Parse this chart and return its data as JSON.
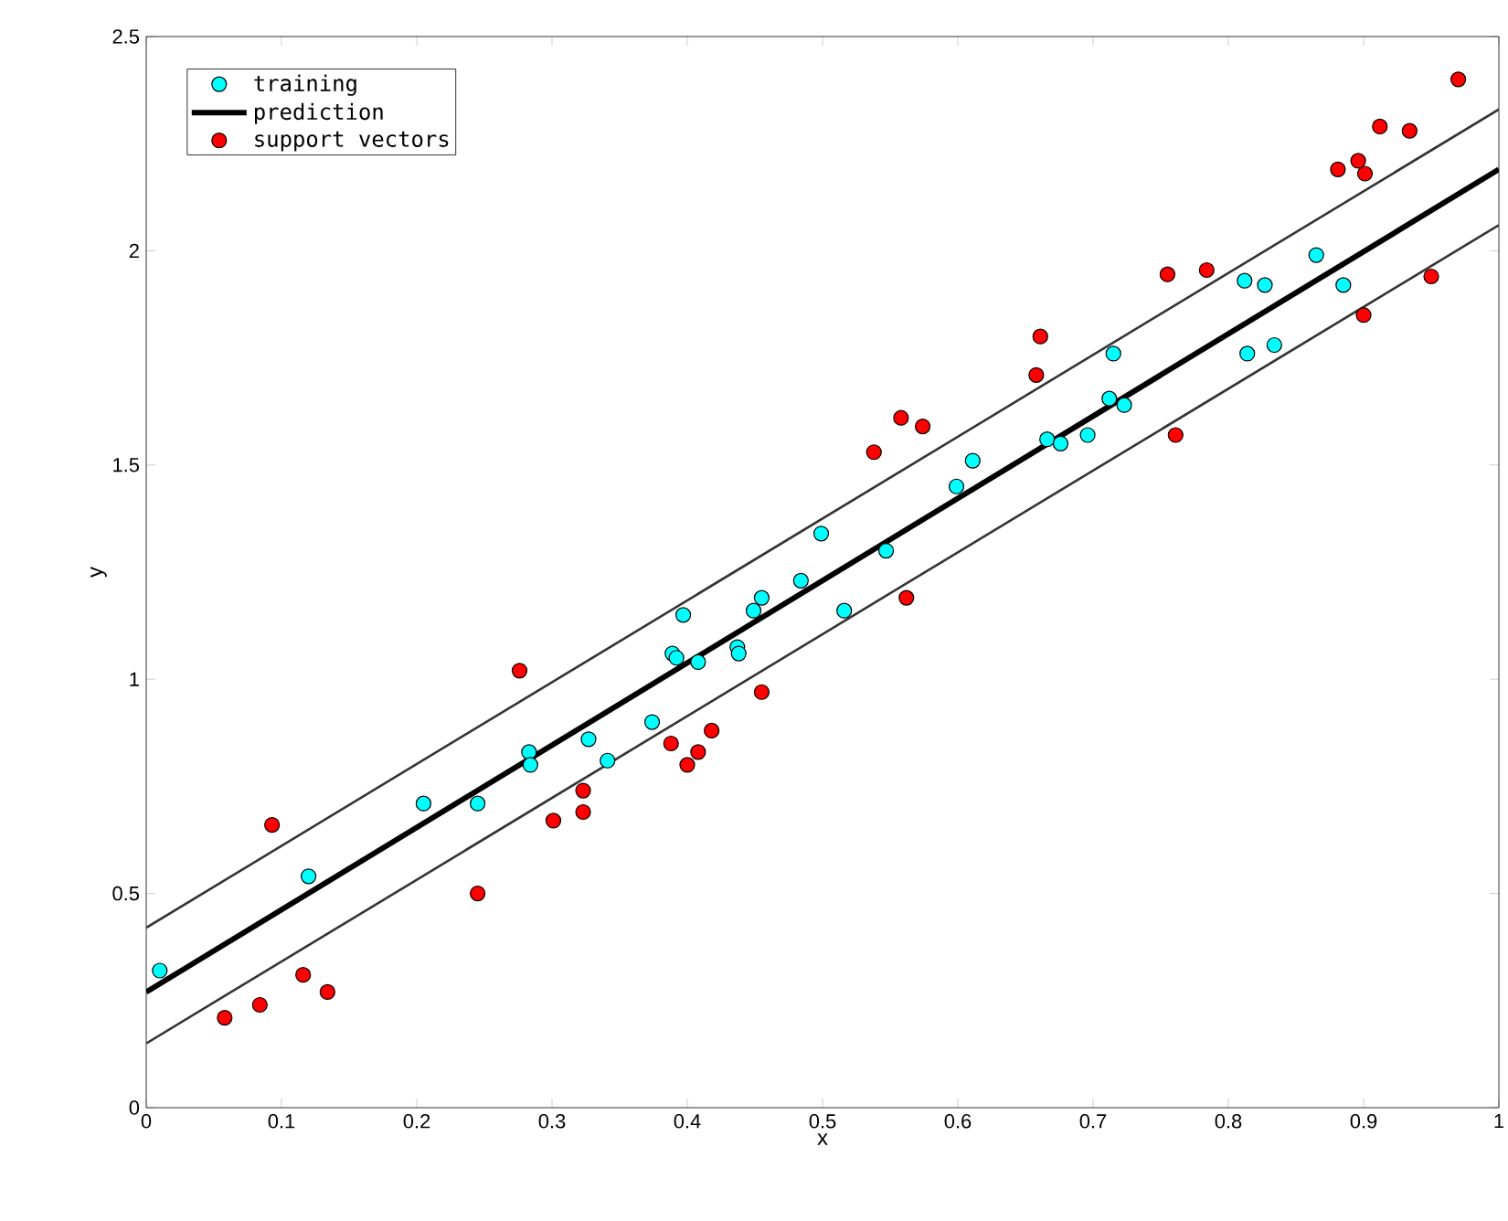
{
  "chart_data": {
    "type": "scatter",
    "xlabel": "x",
    "ylabel": "y",
    "xlim": [
      0,
      1
    ],
    "ylim": [
      0,
      2.5
    ],
    "xticks": [
      0,
      0.1,
      0.2,
      0.3,
      0.4,
      0.5,
      0.6,
      0.7,
      0.8,
      0.9,
      1
    ],
    "yticks": [
      0,
      0.5,
      1,
      1.5,
      2,
      2.5
    ],
    "grid": false,
    "legend": "top left",
    "series": [
      {
        "name": "training",
        "marker": "circle",
        "color": "#00ffff",
        "x": [
          0.01,
          0.12,
          0.205,
          0.245,
          0.283,
          0.284,
          0.327,
          0.341,
          0.374,
          0.389,
          0.392,
          0.408,
          0.397,
          0.437,
          0.438,
          0.449,
          0.455,
          0.484,
          0.499,
          0.516,
          0.547,
          0.599,
          0.611,
          0.666,
          0.676,
          0.696,
          0.712,
          0.723,
          0.715,
          0.812,
          0.827,
          0.814,
          0.834,
          0.865,
          0.885
        ],
        "values": [
          0.32,
          0.54,
          0.71,
          0.71,
          0.83,
          0.8,
          0.86,
          0.81,
          0.9,
          1.06,
          1.05,
          1.04,
          1.15,
          1.075,
          1.06,
          1.16,
          1.19,
          1.23,
          1.34,
          1.16,
          1.3,
          1.45,
          1.51,
          1.56,
          1.55,
          1.57,
          1.655,
          1.64,
          1.76,
          1.93,
          1.92,
          1.76,
          1.78,
          1.99,
          1.92
        ]
      },
      {
        "name": "prediction",
        "type": "line",
        "marker": "none",
        "color": "#000000",
        "x": [
          0,
          1
        ],
        "values": [
          0.27,
          2.19
        ]
      },
      {
        "name": "support vectors",
        "marker": "circle",
        "color": "#ff0000",
        "x": [
          0.058,
          0.084,
          0.093,
          0.116,
          0.134,
          0.245,
          0.276,
          0.301,
          0.323,
          0.323,
          0.388,
          0.4,
          0.408,
          0.418,
          0.455,
          0.538,
          0.558,
          0.574,
          0.562,
          0.658,
          0.661,
          0.755,
          0.761,
          0.784,
          0.881,
          0.896,
          0.9,
          0.901,
          0.912,
          0.934,
          0.95,
          0.97
        ],
        "values": [
          0.21,
          0.24,
          0.66,
          0.31,
          0.27,
          0.5,
          1.02,
          0.67,
          0.74,
          0.69,
          0.85,
          0.8,
          0.83,
          0.88,
          0.97,
          1.53,
          1.61,
          1.59,
          1.19,
          1.71,
          1.8,
          1.945,
          1.57,
          1.955,
          2.19,
          2.21,
          1.85,
          2.18,
          2.29,
          2.28,
          1.94,
          2.4
        ]
      },
      {
        "type": "line",
        "marker": "none",
        "color": "#333333",
        "x": [
          0,
          1
        ],
        "values": [
          0.42,
          2.33
        ]
      },
      {
        "type": "line",
        "marker": "none",
        "color": "#333333",
        "x": [
          0,
          1
        ],
        "values": [
          0.15,
          2.06
        ]
      }
    ]
  }
}
